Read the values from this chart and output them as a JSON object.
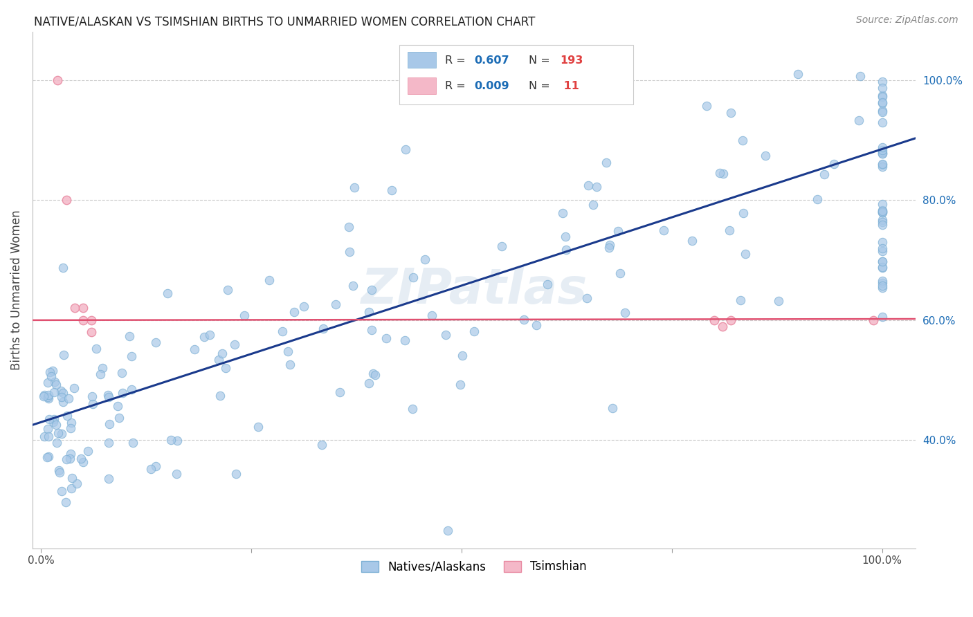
{
  "title": "NATIVE/ALASKAN VS TSIMSHIAN BIRTHS TO UNMARRIED WOMEN CORRELATION CHART",
  "source": "Source: ZipAtlas.com",
  "ylabel": "Births to Unmarried Women",
  "ytick_labels": [
    "40.0%",
    "60.0%",
    "80.0%",
    "100.0%"
  ],
  "ytick_values": [
    0.4,
    0.6,
    0.8,
    1.0
  ],
  "xlim": [
    -0.01,
    1.04
  ],
  "ylim": [
    0.22,
    1.08
  ],
  "legend_label_blue": "Natives/Alaskans",
  "legend_label_pink": "Tsimshian",
  "blue_color": "#a8c8e8",
  "blue_edge_color": "#7bafd4",
  "pink_color": "#f4b8c8",
  "pink_edge_color": "#e888a0",
  "blue_line_color": "#1a3a8c",
  "pink_line_color": "#e05070",
  "watermark": "ZIPatlas",
  "blue_intercept": 0.43,
  "blue_slope": 0.455,
  "pink_intercept": 0.6,
  "pink_slope": 0.002,
  "title_fontsize": 12,
  "source_fontsize": 10,
  "tick_fontsize": 11,
  "ylabel_fontsize": 12
}
